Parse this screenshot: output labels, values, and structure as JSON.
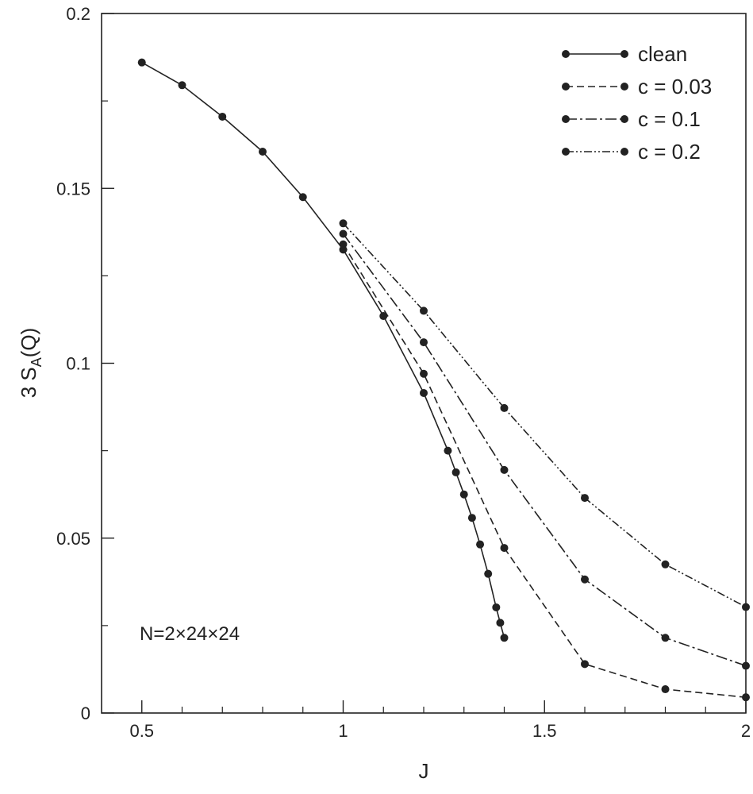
{
  "chart_data": {
    "type": "line",
    "title": "",
    "xlabel": "J",
    "ylabel_main": "3 S",
    "ylabel_sub": "A",
    "ylabel_tail": "(Q)",
    "xlim": [
      0.4,
      2.0
    ],
    "ylim": [
      0,
      0.2
    ],
    "x_ticks": [
      0.5,
      1,
      1.5,
      2
    ],
    "x_tick_labels": [
      "0.5",
      "1",
      "1.5",
      "2"
    ],
    "x_minor_ticks": [
      0.6,
      0.7,
      0.8,
      0.9,
      1.1,
      1.2,
      1.3,
      1.4,
      1.6,
      1.7,
      1.8,
      1.9
    ],
    "y_ticks": [
      0,
      0.05,
      0.1,
      0.15,
      0.2
    ],
    "y_tick_labels": [
      "0",
      "0.05",
      "0.1",
      "0.15",
      "0.2"
    ],
    "y_minor_ticks": [
      0.025,
      0.075,
      0.125,
      0.175
    ],
    "grid": false,
    "legend_position": "top-right",
    "annotation": "N=2×24×24",
    "series": [
      {
        "name": "clean",
        "dash": "solid",
        "points": [
          [
            0.5,
            0.186
          ],
          [
            0.6,
            0.1795
          ],
          [
            0.7,
            0.1705
          ],
          [
            0.8,
            0.1605
          ],
          [
            0.9,
            0.1475
          ],
          [
            1.0,
            0.1325
          ],
          [
            1.1,
            0.1135
          ],
          [
            1.2,
            0.0915
          ],
          [
            1.26,
            0.075
          ],
          [
            1.28,
            0.0688
          ],
          [
            1.3,
            0.0625
          ],
          [
            1.32,
            0.0558
          ],
          [
            1.34,
            0.0482
          ],
          [
            1.36,
            0.0398
          ],
          [
            1.38,
            0.0302
          ],
          [
            1.39,
            0.0258
          ],
          [
            1.4,
            0.0215
          ]
        ]
      },
      {
        "name": "c = 0.03",
        "dash": "dashed",
        "points": [
          [
            1.0,
            0.134
          ],
          [
            1.2,
            0.097
          ],
          [
            1.4,
            0.0472
          ],
          [
            1.6,
            0.014
          ],
          [
            1.8,
            0.0068
          ],
          [
            2.0,
            0.0045
          ]
        ]
      },
      {
        "name": "c = 0.1",
        "dash": "dashdot",
        "points": [
          [
            1.0,
            0.137
          ],
          [
            1.2,
            0.106
          ],
          [
            1.4,
            0.0695
          ],
          [
            1.6,
            0.0382
          ],
          [
            1.8,
            0.0215
          ],
          [
            2.0,
            0.0135
          ]
        ]
      },
      {
        "name": "c = 0.2",
        "dash": "dashdotdot",
        "points": [
          [
            1.0,
            0.14
          ],
          [
            1.2,
            0.115
          ],
          [
            1.4,
            0.0872
          ],
          [
            1.6,
            0.0615
          ],
          [
            1.8,
            0.0425
          ],
          [
            2.0,
            0.0303
          ]
        ]
      }
    ]
  }
}
